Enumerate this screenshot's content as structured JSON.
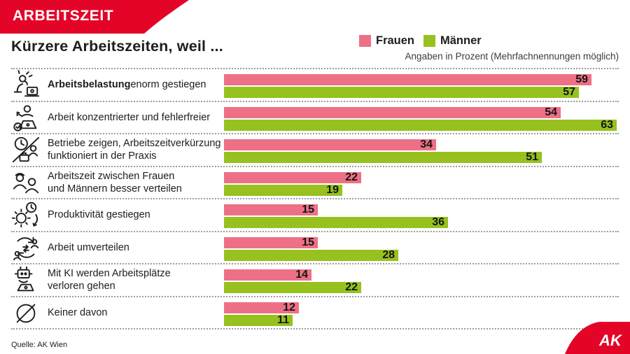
{
  "banner": {
    "label": "ARBEITSZEIT"
  },
  "title": "Kürzere Arbeitszeiten, weil ...",
  "subtitle": "Angaben in Prozent (Mehrfachnennungen möglich)",
  "legend": [
    {
      "label": "Frauen",
      "color": "#ee7086"
    },
    {
      "label": "Männer",
      "color": "#96c11f"
    }
  ],
  "chart_data": {
    "type": "bar",
    "orientation": "horizontal",
    "units": "percent",
    "title": "Kürzere Arbeitszeiten, weil ...",
    "note": "Angaben in Prozent (Mehrfachnennungen möglich)",
    "categories": [
      "Arbeitsbelastung enorm gestiegen",
      "Arbeit konzentrierter und fehlerfreier",
      "Betriebe zeigen, Arbeitszeitverkürzung funktioniert in der Praxis",
      "Arbeitszeit zwischen Frauen und Männern besser verteilen",
      "Produktivität gestiegen",
      "Arbeit umverteilen",
      "Mit KI werden Arbeitsplätze verloren gehen",
      "Keiner davon"
    ],
    "series": [
      {
        "name": "Frauen",
        "color": "#ee7086",
        "values": [
          59,
          54,
          34,
          22,
          15,
          15,
          14,
          12
        ]
      },
      {
        "name": "Männer",
        "color": "#96c11f",
        "values": [
          57,
          63,
          51,
          19,
          36,
          28,
          22,
          11
        ]
      }
    ],
    "xlim": [
      0,
      63
    ],
    "value_labels": "inside-end",
    "legend_position": "top-right",
    "grid": false
  },
  "rows": [
    {
      "icon": "workload-icon",
      "bold": "Arbeitsbelastung",
      "text": " enorm gestiegen"
    },
    {
      "icon": "accuracy-icon",
      "bold": "",
      "text": "Arbeit konzentrierter und fehlerfreier"
    },
    {
      "icon": "practice-clock-icon",
      "bold": "",
      "text": "Betriebe zeigen, Arbeitszeitverkürzung\nfunktioniert in der Praxis"
    },
    {
      "icon": "gender-share-icon",
      "bold": "",
      "text": "Arbeitszeit zwischen Frauen\nund Männern besser verteilen"
    },
    {
      "icon": "productivity-icon",
      "bold": "",
      "text": "Produktivität gestiegen"
    },
    {
      "icon": "redistribute-icon",
      "bold": "",
      "text": "Arbeit umverteilen"
    },
    {
      "icon": "ai-robot-icon",
      "bold": "",
      "text": "Mit KI werden Arbeitsplätze\nverloren gehen"
    },
    {
      "icon": "none-icon",
      "bold": "",
      "text": "Keiner davon"
    }
  ],
  "source": "Quelle: AK Wien",
  "logo_text": "AK",
  "colors": {
    "accent_red": "#e40428",
    "text": "#1d1d1b",
    "divider": "#9c9c9c"
  }
}
